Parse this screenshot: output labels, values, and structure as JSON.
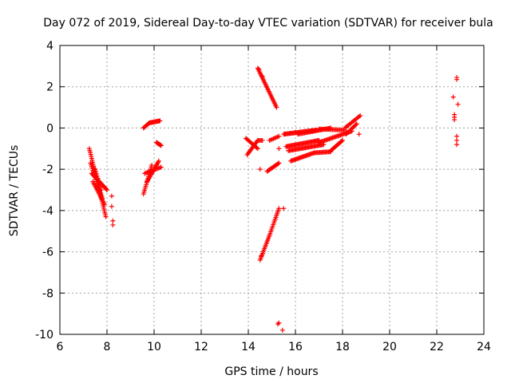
{
  "chart_data": {
    "type": "scatter",
    "title": "Day 072 of 2019, Sidereal Day-to-day VTEC variation (SDTVAR) for receiver bula",
    "xlabel": "GPS time / hours",
    "ylabel": "SDTVAR / TECUs",
    "xlim": [
      6,
      24
    ],
    "ylim": [
      -10,
      4
    ],
    "xticks": [
      6,
      8,
      10,
      12,
      14,
      16,
      18,
      20,
      22,
      24
    ],
    "yticks": [
      -10,
      -8,
      -6,
      -4,
      -2,
      0,
      2,
      4
    ],
    "xtick_labels": [
      "6",
      "8",
      "10",
      "12",
      "14",
      "16",
      "18",
      "20",
      "22",
      "24"
    ],
    "ytick_labels": [
      "-10",
      "-8",
      "-6",
      "-4",
      "-2",
      "0",
      "2",
      "4"
    ],
    "grid": true,
    "marker": "+",
    "color": "#ff0000",
    "segments": [
      {
        "from": [
          7.25,
          -1.0
        ],
        "to": [
          7.95,
          -4.3
        ],
        "n": 36
      },
      {
        "from": [
          7.3,
          -1.7
        ],
        "to": [
          7.8,
          -3.4
        ],
        "n": 20
      },
      {
        "from": [
          7.35,
          -2.2
        ],
        "to": [
          8.0,
          -3.0
        ],
        "n": 22
      },
      {
        "from": [
          7.4,
          -2.6
        ],
        "to": [
          7.9,
          -3.7
        ],
        "n": 16
      },
      {
        "from": [
          7.5,
          -2.0
        ],
        "to": [
          7.75,
          -3.0
        ],
        "n": 10
      },
      {
        "from": [
          9.55,
          -3.2
        ],
        "to": [
          9.9,
          -1.8
        ],
        "n": 16
      },
      {
        "from": [
          9.7,
          -2.6
        ],
        "to": [
          10.2,
          -1.6
        ],
        "n": 18
      },
      {
        "from": [
          9.6,
          -2.2
        ],
        "to": [
          10.3,
          -1.9
        ],
        "n": 14
      },
      {
        "from": [
          9.55,
          0.0
        ],
        "to": [
          9.8,
          0.25
        ],
        "n": 8
      },
      {
        "from": [
          9.8,
          0.25
        ],
        "to": [
          10.25,
          0.35
        ],
        "n": 14
      },
      {
        "from": [
          10.1,
          -0.7
        ],
        "to": [
          10.3,
          -0.85
        ],
        "n": 8
      },
      {
        "from": [
          13.9,
          -0.5
        ],
        "to": [
          14.4,
          -1.0
        ],
        "n": 12
      },
      {
        "from": [
          13.95,
          -1.3
        ],
        "to": [
          14.4,
          -0.6
        ],
        "n": 12
      },
      {
        "from": [
          14.4,
          -0.6
        ],
        "to": [
          14.6,
          -0.6
        ],
        "n": 5
      },
      {
        "from": [
          14.4,
          2.9
        ],
        "to": [
          15.2,
          1.0
        ],
        "n": 28
      },
      {
        "from": [
          14.5,
          -6.4
        ],
        "to": [
          14.9,
          -5.2
        ],
        "n": 16
      },
      {
        "from": [
          14.9,
          -5.2
        ],
        "to": [
          15.3,
          -3.9
        ],
        "n": 16
      },
      {
        "from": [
          14.8,
          -2.1
        ],
        "to": [
          15.3,
          -1.7
        ],
        "n": 14
      },
      {
        "from": [
          14.9,
          -0.6
        ],
        "to": [
          15.3,
          -0.4
        ],
        "n": 8
      },
      {
        "from": [
          15.5,
          -0.3
        ],
        "to": [
          16.9,
          -0.1
        ],
        "n": 36
      },
      {
        "from": [
          15.6,
          -0.9
        ],
        "to": [
          17.0,
          -0.6
        ],
        "n": 34
      },
      {
        "from": [
          15.7,
          -1.1
        ],
        "to": [
          17.2,
          -0.8
        ],
        "n": 34
      },
      {
        "from": [
          16.1,
          -0.3
        ],
        "to": [
          17.5,
          0.0
        ],
        "n": 30
      },
      {
        "from": [
          15.8,
          -1.6
        ],
        "to": [
          16.8,
          -1.2
        ],
        "n": 24
      },
      {
        "from": [
          16.8,
          -1.2
        ],
        "to": [
          17.5,
          -1.15
        ],
        "n": 16
      },
      {
        "from": [
          17.5,
          -1.1
        ],
        "to": [
          18.0,
          -0.6
        ],
        "n": 14
      },
      {
        "from": [
          17.0,
          -0.7
        ],
        "to": [
          18.4,
          -0.15
        ],
        "n": 30
      },
      {
        "from": [
          17.0,
          -0.05
        ],
        "to": [
          18.1,
          -0.1
        ],
        "n": 22
      },
      {
        "from": [
          18.1,
          0.0
        ],
        "to": [
          18.75,
          0.6
        ],
        "n": 14
      },
      {
        "from": [
          18.15,
          -0.3
        ],
        "to": [
          18.6,
          0.2
        ],
        "n": 12
      },
      {
        "from": [
          22.75,
          0.4
        ],
        "to": [
          22.75,
          0.65
        ],
        "n": 3
      }
    ],
    "points": [
      [
        8.2,
        -3.3
      ],
      [
        8.2,
        -3.8
      ],
      [
        8.25,
        -4.5
      ],
      [
        8.25,
        -4.7
      ],
      [
        14.45,
        2.85
      ],
      [
        14.6,
        2.5
      ],
      [
        14.5,
        -2.0
      ],
      [
        14.55,
        -6.2
      ],
      [
        15.3,
        -1.0
      ],
      [
        15.5,
        -3.9
      ],
      [
        15.25,
        -9.5
      ],
      [
        15.3,
        -9.45
      ],
      [
        15.45,
        -9.8
      ],
      [
        18.7,
        -0.3
      ],
      [
        22.7,
        1.5
      ],
      [
        22.85,
        2.45
      ],
      [
        22.85,
        2.35
      ],
      [
        22.9,
        1.15
      ],
      [
        22.85,
        -0.4
      ],
      [
        22.85,
        -0.6
      ],
      [
        22.85,
        -0.8
      ]
    ]
  }
}
